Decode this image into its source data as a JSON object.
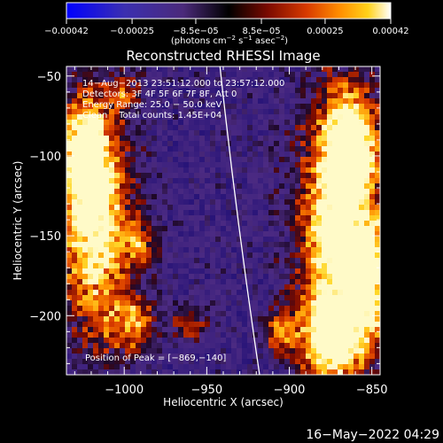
{
  "chart_data": {
    "type": "heatmap",
    "title": "Reconstructed RHESSI Image",
    "xlabel": "Heliocentric X (arcsec)",
    "ylabel": "Heliocentric Y (arcsec)",
    "xlim": [
      -1035,
      -845
    ],
    "ylim": [
      -237,
      -44
    ],
    "x_ticks": [
      -1000,
      -950,
      -900,
      -850
    ],
    "x_tick_labels": [
      "−1000",
      "−950",
      "−900",
      "−850"
    ],
    "y_ticks": [
      -50,
      -100,
      -150,
      -200
    ],
    "y_tick_labels": [
      "−50",
      "−100",
      "−150",
      "−200"
    ],
    "colorbar": {
      "range": [
        -0.00042,
        0.00042
      ],
      "ticks": [
        -0.00042,
        -0.00025,
        -8.5e-05,
        8.5e-05,
        0.00025,
        0.00042
      ],
      "tick_labels": [
        "−0.00042",
        "−0.00025",
        "−8.5e−05",
        "8.5e−05",
        "0.00025",
        "0.00042"
      ],
      "unit_main": "(photons cm",
      "unit_sup1": "−2",
      "unit_mid": " s",
      "unit_sup2": "−1",
      "unit_end": " asec",
      "unit_sup3": "−2",
      "unit_close": ")",
      "colors": [
        "#0000ff",
        "#3b2fb0",
        "#4b2a7a",
        "#000000",
        "#7a0a00",
        "#d83a00",
        "#ff8c00",
        "#ffd21a",
        "#ffffff"
      ]
    },
    "annotations": [
      "14−Aug−2013 23:51:12.000 to 23:57:12.000",
      "Detectors: 3F 4F 5F 6F 7F 8F, Att 0",
      "Energy Range: 25.0 − 50.0 keV",
      "Clean    Total counts: 1.45E+04"
    ],
    "peak_label": "Position of Peak = [−869,−140]",
    "peak": [
      -869,
      -140
    ],
    "limb_curve": [
      [
        -942,
        -44
      ],
      [
        -918,
        -237
      ]
    ],
    "grid": false
  },
  "footer": {
    "date": "16−May−2022 04:29"
  }
}
